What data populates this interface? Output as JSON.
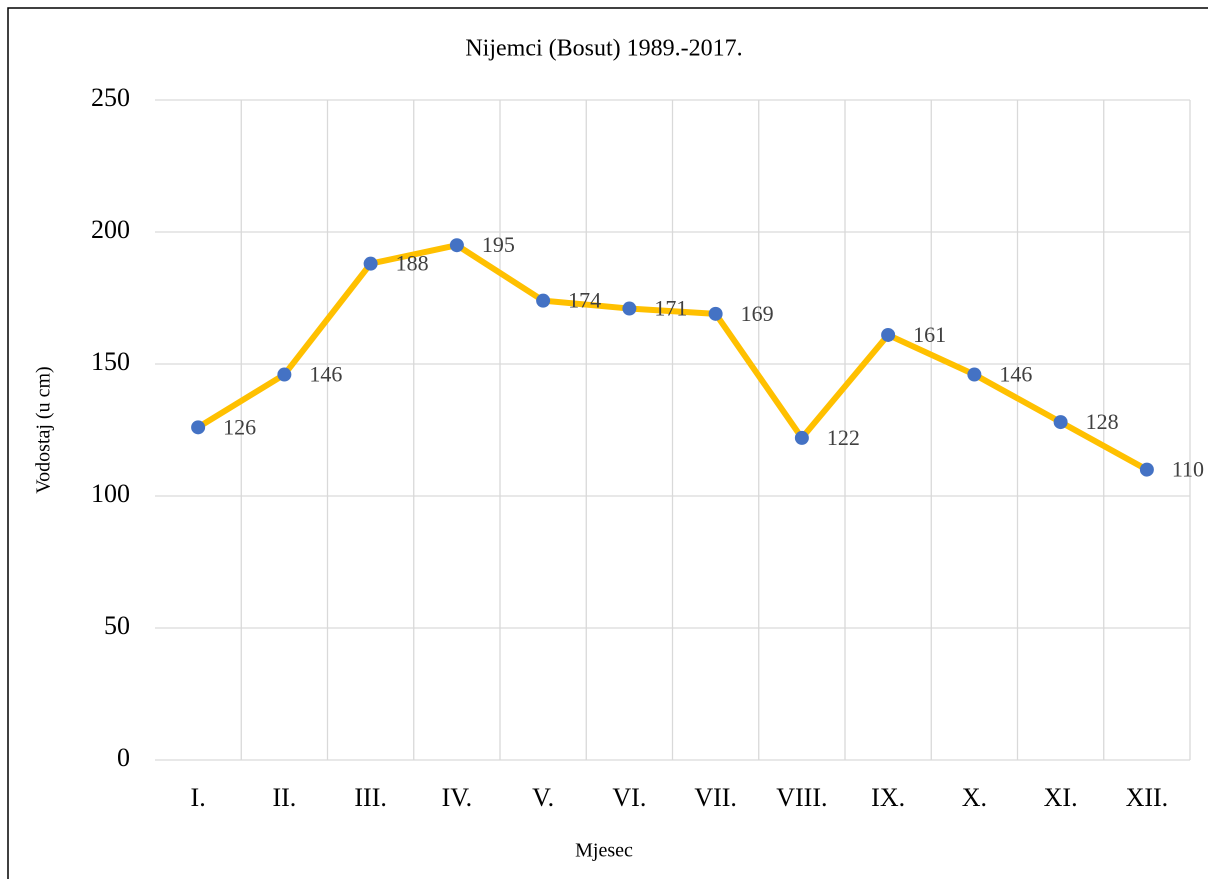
{
  "chart_data": {
    "type": "line",
    "title": "Nijemci (Bosut) 1989.-2017.",
    "x_label": "Mjesec",
    "y_label": "Vodostaj (u cm)",
    "categories": [
      "I.",
      "II.",
      "III.",
      "IV.",
      "V.",
      "VI.",
      "VII.",
      "VIII.",
      "IX.",
      "X.",
      "XI.",
      "XII."
    ],
    "series": [
      {
        "name": "Vodostaj",
        "color": "#ffc000",
        "marker_color": "#4472c4",
        "values": [
          126,
          146,
          188,
          195,
          174,
          171,
          169,
          122,
          161,
          146,
          128,
          110
        ]
      }
    ],
    "ylim": [
      0,
      250
    ],
    "yticks": [
      0,
      50,
      100,
      150,
      200,
      250
    ],
    "grid": true,
    "xgrid": true,
    "data_labels": true
  }
}
